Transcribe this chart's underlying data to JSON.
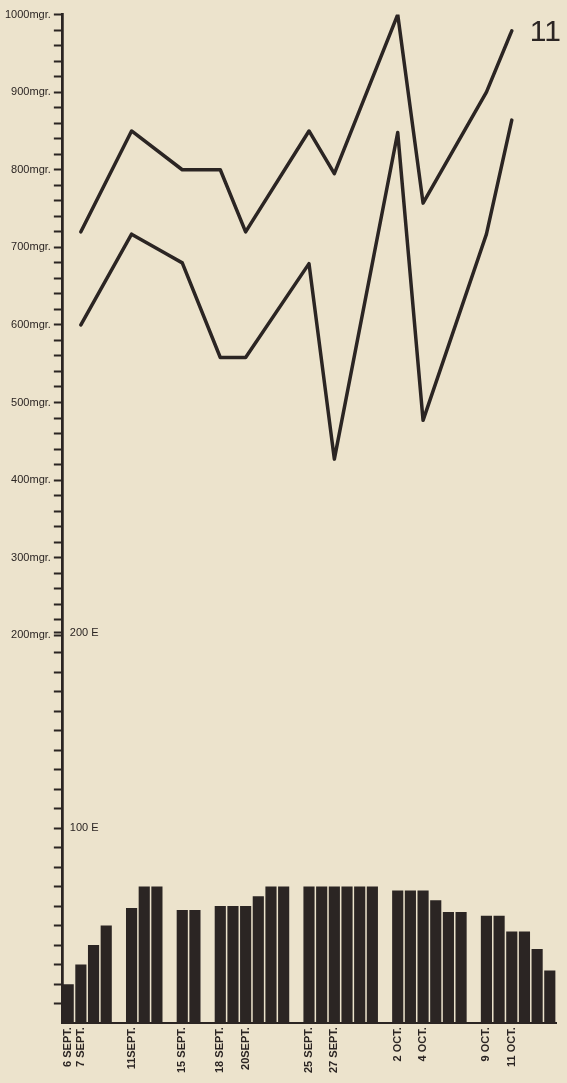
{
  "chart_data": {
    "type": "bar",
    "annotations": [
      "11"
    ],
    "categories": [
      "6 SEPT.",
      "7 SEPT.",
      null,
      null,
      null,
      "11SEPT.",
      null,
      null,
      null,
      "15 SEPT.",
      null,
      null,
      "18 SEPT.",
      null,
      "20SEPT.",
      null,
      null,
      null,
      null,
      "25 SEPT.",
      null,
      "27 SEPT.",
      null,
      null,
      null,
      null,
      "2 OCT.",
      null,
      "4 OCT.",
      null,
      null,
      null,
      null,
      "9 OCT.",
      null,
      "11 OCT.",
      null,
      null,
      null
    ],
    "series": [
      {
        "type": "line",
        "color": "#2b2523",
        "values": [
          null,
          720,
          null,
          null,
          null,
          850,
          null,
          null,
          null,
          800,
          null,
          null,
          800,
          null,
          720,
          null,
          null,
          null,
          null,
          850,
          null,
          795,
          null,
          null,
          null,
          null,
          1000,
          null,
          757,
          null,
          null,
          null,
          null,
          900,
          null,
          979,
          null,
          null,
          null
        ]
      },
      {
        "type": "line",
        "color": "#2b2523",
        "values": [
          null,
          600,
          null,
          null,
          null,
          717,
          null,
          null,
          null,
          680,
          null,
          null,
          558,
          null,
          558,
          null,
          null,
          null,
          null,
          679,
          null,
          427,
          null,
          null,
          null,
          null,
          848,
          null,
          477,
          null,
          null,
          null,
          null,
          717,
          null,
          864,
          null,
          null,
          null
        ]
      },
      {
        "axis": "y2",
        "color": "#2b2523",
        "values": [
          20,
          30,
          40,
          50,
          null,
          59,
          70,
          70,
          null,
          58,
          58,
          null,
          60,
          60,
          60,
          65,
          70,
          70,
          null,
          70,
          70,
          70,
          70,
          70,
          70,
          null,
          68,
          68,
          68,
          63,
          57,
          57,
          null,
          55,
          55,
          47,
          47,
          38,
          27
        ]
      }
    ],
    "ylim": [
      -300,
      1000
    ],
    "yticks": [
      {
        "value": 200,
        "label": "200mgr."
      },
      {
        "value": 220,
        "label": null
      },
      {
        "value": 240,
        "label": null
      },
      {
        "value": 260,
        "label": null
      },
      {
        "value": 280,
        "label": null
      },
      {
        "value": 300,
        "label": "300mgr."
      },
      {
        "value": 320,
        "label": null
      },
      {
        "value": 340,
        "label": null
      },
      {
        "value": 360,
        "label": null
      },
      {
        "value": 380,
        "label": null
      },
      {
        "value": 400,
        "label": "400mgr."
      },
      {
        "value": 420,
        "label": null
      },
      {
        "value": 440,
        "label": null
      },
      {
        "value": 460,
        "label": null
      },
      {
        "value": 480,
        "label": null
      },
      {
        "value": 500,
        "label": "500mgr."
      },
      {
        "value": 520,
        "label": null
      },
      {
        "value": 540,
        "label": null
      },
      {
        "value": 560,
        "label": null
      },
      {
        "value": 580,
        "label": null
      },
      {
        "value": 600,
        "label": "600mgr."
      },
      {
        "value": 620,
        "label": null
      },
      {
        "value": 640,
        "label": null
      },
      {
        "value": 660,
        "label": null
      },
      {
        "value": 680,
        "label": null
      },
      {
        "value": 700,
        "label": "700mgr."
      },
      {
        "value": 720,
        "label": null
      },
      {
        "value": 740,
        "label": null
      },
      {
        "value": 760,
        "label": null
      },
      {
        "value": 780,
        "label": null
      },
      {
        "value": 800,
        "label": "800mgr."
      },
      {
        "value": 820,
        "label": null
      },
      {
        "value": 840,
        "label": null
      },
      {
        "value": 860,
        "label": null
      },
      {
        "value": 880,
        "label": null
      },
      {
        "value": 900,
        "label": "900mgr."
      },
      {
        "value": 920,
        "label": null
      },
      {
        "value": 940,
        "label": null
      },
      {
        "value": 960,
        "label": null
      },
      {
        "value": 980,
        "label": null
      },
      {
        "value": 1000,
        "label": "1000mgr."
      }
    ],
    "y2lim": [
      0,
      517
    ],
    "y2ticks": [
      {
        "value": 10,
        "label": null
      },
      {
        "value": 20,
        "label": null
      },
      {
        "value": 30,
        "label": null
      },
      {
        "value": 40,
        "label": null
      },
      {
        "value": 50,
        "label": null
      },
      {
        "value": 60,
        "label": null
      },
      {
        "value": 70,
        "label": null
      },
      {
        "value": 80,
        "label": null
      },
      {
        "value": 90,
        "label": null
      },
      {
        "value": 100,
        "label": "100 E"
      },
      {
        "value": 110,
        "label": null
      },
      {
        "value": 120,
        "label": null
      },
      {
        "value": 130,
        "label": null
      },
      {
        "value": 140,
        "label": null
      },
      {
        "value": 150,
        "label": null
      },
      {
        "value": 160,
        "label": null
      },
      {
        "value": 170,
        "label": null
      },
      {
        "value": 180,
        "label": null
      },
      {
        "value": 190,
        "label": null
      },
      {
        "value": 200,
        "label": "200 E"
      }
    ]
  }
}
